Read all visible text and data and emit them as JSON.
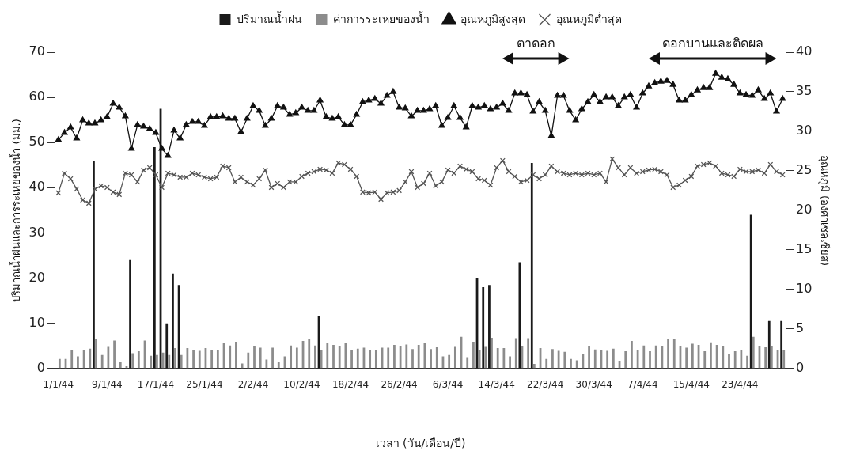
{
  "chart_data": {
    "type": "bar",
    "xlabel": "เวลา (วัน/เดือน/ปี)",
    "ylabel": "ปริมาณน้ำฝนและการระเหยของน้ำ (มม.)",
    "y2label": "อุณหภูมิ (องศาเซลเซียส)",
    "legend": "top",
    "categories": [
      "1/1/44",
      null,
      null,
      null,
      null,
      null,
      null,
      null,
      "9/1/44",
      null,
      null,
      null,
      null,
      null,
      null,
      null,
      "17/1/44",
      null,
      null,
      null,
      null,
      null,
      null,
      null,
      "25/1/44",
      null,
      null,
      null,
      null,
      null,
      null,
      null,
      "2/2/44",
      null,
      null,
      null,
      null,
      null,
      null,
      null,
      "10/2/44",
      null,
      null,
      null,
      null,
      null,
      null,
      null,
      "18/2/44",
      null,
      null,
      null,
      null,
      null,
      null,
      null,
      "26/2/44",
      null,
      null,
      null,
      null,
      null,
      null,
      null,
      "6/3/44",
      null,
      null,
      null,
      null,
      null,
      null,
      null,
      "14/3/44",
      null,
      null,
      null,
      null,
      null,
      null,
      null,
      "22/3/44",
      null,
      null,
      null,
      null,
      null,
      null,
      null,
      "30/3/44",
      null,
      null,
      null,
      null,
      null,
      null,
      null,
      "7/4/44",
      null,
      null,
      null,
      null,
      null,
      null,
      null,
      "15/4/44",
      null,
      null,
      null,
      null,
      null,
      null,
      null,
      "23/4/44",
      null,
      null,
      null,
      null,
      null,
      null,
      null
    ],
    "ylim": [
      0,
      70
    ],
    "yticks": [
      0,
      10,
      20,
      30,
      40,
      50,
      60,
      70
    ],
    "y2lim": [
      0,
      40
    ],
    "y2ticks": [
      0,
      5,
      10,
      15,
      20,
      25,
      30,
      35,
      40
    ],
    "series": [
      {
        "name": "ปริมาณน้ำฝน",
        "color": "#1a1a1a",
        "values": [
          0,
          0,
          0,
          0,
          0,
          0,
          46,
          0,
          0,
          0,
          0,
          0,
          24,
          0,
          0,
          0,
          49,
          57.5,
          10,
          21,
          18.5,
          0,
          0,
          0,
          0,
          0,
          0,
          0,
          0,
          0,
          0,
          0,
          0,
          0,
          0,
          0,
          0,
          0,
          0,
          0,
          0,
          0,
          0,
          11.5,
          0,
          0,
          0,
          0,
          0,
          0,
          0,
          0,
          0,
          0,
          0,
          0,
          0,
          0,
          0,
          0,
          0,
          0,
          0,
          0,
          0,
          0,
          0,
          0,
          0,
          20,
          18,
          18.5,
          0,
          0,
          0,
          0,
          23.5,
          0,
          45.5,
          0,
          0,
          0,
          0,
          0,
          0,
          0,
          0,
          0,
          0,
          0,
          0,
          0,
          0,
          0,
          0,
          0,
          0,
          0,
          0,
          0,
          0,
          0,
          0,
          0,
          0,
          0,
          0,
          0,
          0,
          0,
          0,
          0,
          0,
          0,
          34,
          0,
          0,
          10.5,
          0,
          10.5
        ]
      },
      {
        "name": "ค่าการระเหยของน้ำ",
        "color": "#8c8c8c",
        "values": [
          2.1,
          2.1,
          4.1,
          2.7,
          4.1,
          4.4,
          6.5,
          3,
          4.8,
          6.2,
          1.5,
          0.5,
          3.4,
          3.8,
          6.2,
          2.8,
          3,
          3.5,
          3,
          4.5,
          3,
          4.5,
          4.1,
          3.9,
          4.5,
          4,
          4,
          5.6,
          5.1,
          5.9,
          1.1,
          3.5,
          4.9,
          4.6,
          2,
          4.6,
          1.4,
          2.7,
          5.1,
          4.6,
          6.1,
          6.5,
          5.1,
          4,
          5.6,
          5.2,
          4.9,
          5.6,
          4.1,
          4.4,
          4.6,
          4.1,
          4,
          4.6,
          4.6,
          5.2,
          5,
          5.3,
          4.3,
          5.2,
          5.7,
          4.3,
          4.7,
          2.7,
          3,
          4.8,
          7,
          2.5,
          5.9,
          4,
          4.8,
          6.8,
          4.5,
          4.5,
          2.7,
          6.7,
          4.9,
          6.7,
          1,
          4.5,
          2.1,
          4.3,
          3.9,
          3.7,
          2.1,
          1.8,
          3.2,
          4.9,
          4.2,
          4,
          3.9,
          4.4,
          1.7,
          3.8,
          6.1,
          4.1,
          5.1,
          3.8,
          5.1,
          4.9,
          6.5,
          6.5,
          4.9,
          4.6,
          5.5,
          5.2,
          3.8,
          5.8,
          5.2,
          4.9,
          3.2,
          3.8,
          4.1,
          2.8,
          7,
          4.9,
          4.7,
          4.9,
          4.1,
          4.1
        ]
      },
      {
        "name": "อุณหภูมิสูงสุด",
        "type": "line",
        "axis": "y2",
        "marker": "triangle",
        "color": "#111111",
        "values": [
          28.9,
          29.8,
          30.5,
          29.1,
          31.4,
          31,
          31,
          31.4,
          31.8,
          33.5,
          33,
          31.9,
          27.8,
          30.8,
          30.6,
          30.3,
          29.8,
          27.8,
          26.9,
          30.1,
          29.1,
          30.8,
          31.2,
          31.2,
          30.7,
          31.8,
          31.8,
          31.9,
          31.6,
          31.6,
          29.9,
          31.6,
          33.2,
          32.6,
          30.7,
          31.6,
          33.2,
          33,
          32.1,
          32.3,
          33,
          32.6,
          32.6,
          33.9,
          31.8,
          31.6,
          31.8,
          30.8,
          30.8,
          32.1,
          33.7,
          33.9,
          34.1,
          33.5,
          34.5,
          35,
          33,
          32.9,
          31.9,
          32.6,
          32.6,
          32.8,
          33.2,
          30.7,
          31.7,
          33.2,
          31.7,
          30.5,
          33.2,
          33,
          33.2,
          32.8,
          33,
          33.5,
          32.6,
          34.8,
          34.8,
          34.6,
          32.5,
          33.7,
          32.6,
          29.4,
          34.5,
          34.5,
          32.6,
          31.4,
          32.8,
          33.7,
          34.6,
          33.7,
          34.3,
          34.3,
          33.2,
          34.3,
          34.6,
          33,
          34.8,
          35.7,
          36.1,
          36.3,
          36.4,
          35.9,
          33.9,
          33.9,
          34.6,
          35.2,
          35.5,
          35.5,
          37.3,
          36.8,
          36.6,
          35.9,
          34.8,
          34.6,
          34.5,
          35.2,
          34.1,
          34.8,
          32.5,
          34.1
        ]
      },
      {
        "name": "อุณหภูมิต่ำสุด",
        "type": "line",
        "axis": "y2",
        "marker": "cross",
        "color": "#555555",
        "values": [
          22.2,
          24.7,
          24,
          22.7,
          21.3,
          20.9,
          22.7,
          23.1,
          22.9,
          22.3,
          22,
          24.7,
          24.5,
          23.6,
          25.1,
          25.4,
          24.5,
          22.9,
          24.7,
          24.5,
          24.2,
          24.2,
          24.7,
          24.5,
          24.2,
          24,
          24.2,
          25.6,
          25.4,
          23.6,
          24.2,
          23.6,
          23.2,
          24,
          25.1,
          22.9,
          23.4,
          22.9,
          23.6,
          23.6,
          24.3,
          24.7,
          24.9,
          25.2,
          25.1,
          24.7,
          26,
          25.8,
          25.2,
          24.3,
          22.3,
          22.2,
          22.3,
          21.4,
          22.2,
          22.3,
          22.5,
          23.6,
          24.9,
          22.9,
          23.4,
          24.7,
          23.1,
          23.6,
          25.1,
          24.7,
          25.6,
          25.2,
          24.9,
          24,
          23.8,
          23.2,
          25.4,
          26.3,
          24.9,
          24.3,
          23.6,
          23.8,
          24.5,
          24,
          24.5,
          25.6,
          24.9,
          24.7,
          24.5,
          24.7,
          24.5,
          24.7,
          24.5,
          24.7,
          23.6,
          26.5,
          25.4,
          24.5,
          25.4,
          24.7,
          24.9,
          25.1,
          25.2,
          24.9,
          24.5,
          22.9,
          23.2,
          23.8,
          24.3,
          25.6,
          25.8,
          26,
          25.6,
          24.7,
          24.5,
          24.3,
          25.2,
          24.9,
          24.9,
          25.1,
          24.7,
          25.8,
          24.9,
          24.5
        ]
      }
    ],
    "annotations": [
      "ตาดอก",
      "ดอกบานและติดผล"
    ]
  }
}
